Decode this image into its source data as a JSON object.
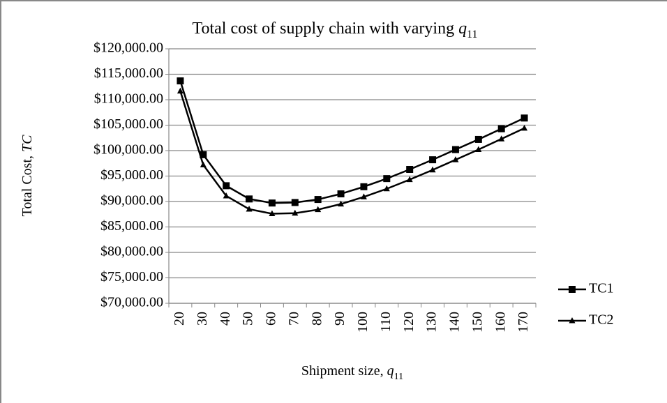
{
  "chart_data": {
    "type": "line",
    "title": [
      "Total cost of supply chain with varying ",
      "q",
      "11"
    ],
    "x_label": [
      "Shipment size, ",
      "q",
      "11"
    ],
    "y_label": [
      "Total Cost, ",
      "TC"
    ],
    "categories": [
      "20",
      "30",
      "40",
      "50",
      "60",
      "70",
      "80",
      "90",
      "100",
      "110",
      "120",
      "130",
      "140",
      "150",
      "160",
      "170"
    ],
    "series": [
      {
        "name": "TC1",
        "color": "#000000",
        "marker": "square",
        "values": [
          113700,
          99200,
          93100,
          90500,
          89700,
          89800,
          90400,
          91500,
          92900,
          94500,
          96300,
          98200,
          100200,
          102200,
          104300,
          106400
        ]
      },
      {
        "name": "TC2",
        "color": "#000000",
        "marker": "triangle",
        "values": [
          111700,
          97200,
          91100,
          88500,
          87600,
          87700,
          88400,
          89500,
          90900,
          92500,
          94300,
          96200,
          98200,
          100200,
          102300,
          104400
        ]
      }
    ],
    "ylim": [
      70000,
      120000
    ],
    "yticks": [
      {
        "value": 70000,
        "label": "$70,000.00"
      },
      {
        "value": 75000,
        "label": "$75,000.00"
      },
      {
        "value": 80000,
        "label": "$80,000.00"
      },
      {
        "value": 85000,
        "label": "$85,000.00"
      },
      {
        "value": 90000,
        "label": "$90,000.00"
      },
      {
        "value": 95000,
        "label": "$95,000.00"
      },
      {
        "value": 100000,
        "label": "$100,000.00"
      },
      {
        "value": 105000,
        "label": "$105,000.00"
      },
      {
        "value": 110000,
        "label": "$110,000.00"
      },
      {
        "value": 115000,
        "label": "$115,000.00"
      },
      {
        "value": 120000,
        "label": "$120,000.00"
      }
    ],
    "grid": true,
    "legend": "right"
  }
}
